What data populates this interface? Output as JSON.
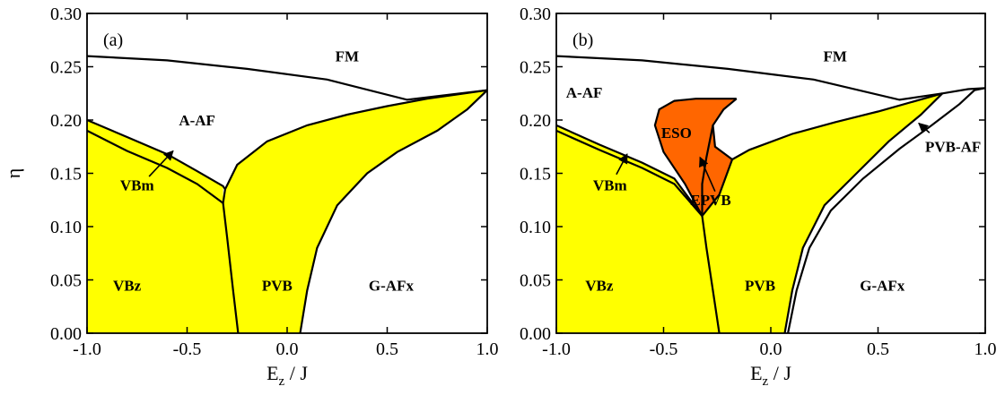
{
  "chart_data": [
    {
      "type": "area",
      "panel_label": "(a)",
      "xlabel_main": "E",
      "xlabel_sub": "z",
      "xlabel_tail": " / J",
      "ylabel": "η",
      "xlim": [
        -1.0,
        1.0
      ],
      "ylim": [
        0.0,
        0.3
      ],
      "x_ticks": [
        "-1.0",
        "-0.5",
        "0.0",
        "0.5",
        "1.0"
      ],
      "y_ticks": [
        "0.00",
        "0.05",
        "0.10",
        "0.15",
        "0.20",
        "0.25",
        "0.30"
      ],
      "regions": [
        {
          "name": "FM",
          "x": 0.3,
          "y": 0.255
        },
        {
          "name": "A-AF",
          "x": -0.45,
          "y": 0.195
        },
        {
          "name": "VBz",
          "x": -0.8,
          "y": 0.04
        },
        {
          "name": "PVB",
          "x": -0.05,
          "y": 0.04
        },
        {
          "name": "G-AFx",
          "x": 0.52,
          "y": 0.04
        }
      ],
      "annotations": [
        {
          "text": "VBm",
          "text_x": -0.75,
          "text_y": 0.134,
          "arrow_from": [
            -0.69,
            0.147
          ],
          "arrow_to": [
            -0.57,
            0.171
          ]
        }
      ],
      "fills": [
        {
          "name": "VBz",
          "color": "#ffff00",
          "points": [
            [
              -1.0,
              0.0
            ],
            [
              -1.0,
              0.19
            ],
            [
              -0.8,
              0.171
            ],
            [
              -0.6,
              0.155
            ],
            [
              -0.45,
              0.14
            ],
            [
              -0.32,
              0.122
            ],
            [
              -0.3,
              0.09
            ],
            [
              -0.27,
              0.04
            ],
            [
              -0.245,
              0.0
            ]
          ]
        },
        {
          "name": "PVB",
          "color": "#ffff00",
          "points": [
            [
              -0.245,
              0.0
            ],
            [
              -0.27,
              0.04
            ],
            [
              -0.3,
              0.09
            ],
            [
              -0.32,
              0.122
            ],
            [
              -0.31,
              0.135
            ],
            [
              -0.25,
              0.158
            ],
            [
              -0.1,
              0.18
            ],
            [
              0.1,
              0.195
            ],
            [
              0.3,
              0.205
            ],
            [
              0.5,
              0.213
            ],
            [
              0.7,
              0.22
            ],
            [
              1.0,
              0.228
            ],
            [
              0.9,
              0.21
            ],
            [
              0.75,
              0.19
            ],
            [
              0.55,
              0.17
            ],
            [
              0.4,
              0.15
            ],
            [
              0.25,
              0.12
            ],
            [
              0.15,
              0.08
            ],
            [
              0.1,
              0.04
            ],
            [
              0.065,
              0.0
            ]
          ]
        },
        {
          "name": "VBm",
          "color": "#ffff00",
          "points": [
            [
              -1.0,
              0.2
            ],
            [
              -0.8,
              0.184
            ],
            [
              -0.6,
              0.168
            ],
            [
              -0.45,
              0.152
            ],
            [
              -0.32,
              0.138
            ],
            [
              -0.32,
              0.122
            ],
            [
              -0.45,
              0.14
            ],
            [
              -0.6,
              0.155
            ],
            [
              -0.8,
              0.171
            ],
            [
              -1.0,
              0.19
            ]
          ]
        }
      ],
      "lines": [
        {
          "name": "FM/A-AF",
          "points": [
            [
              -1.0,
              0.26
            ],
            [
              -0.6,
              0.256
            ],
            [
              -0.2,
              0.248
            ],
            [
              0.2,
              0.238
            ],
            [
              0.6,
              0.219
            ],
            [
              1.0,
              0.228
            ]
          ]
        },
        {
          "name": "A-AF/VBm",
          "points": [
            [
              -1.0,
              0.2
            ],
            [
              -0.8,
              0.184
            ],
            [
              -0.6,
              0.168
            ],
            [
              -0.45,
              0.152
            ],
            [
              -0.32,
              0.138
            ],
            [
              -0.31,
              0.135
            ]
          ]
        },
        {
          "name": "VBm/VBz",
          "points": [
            [
              -1.0,
              0.19
            ],
            [
              -0.8,
              0.171
            ],
            [
              -0.6,
              0.155
            ],
            [
              -0.45,
              0.14
            ],
            [
              -0.32,
              0.122
            ]
          ]
        },
        {
          "name": "VBm-end",
          "points": [
            [
              -0.32,
              0.122
            ],
            [
              -0.31,
              0.135
            ]
          ]
        },
        {
          "name": "VBz/PVB",
          "points": [
            [
              -0.32,
              0.122
            ],
            [
              -0.3,
              0.09
            ],
            [
              -0.27,
              0.04
            ],
            [
              -0.245,
              0.0
            ]
          ]
        },
        {
          "name": "A-AF/PVB",
          "points": [
            [
              -0.31,
              0.135
            ],
            [
              -0.25,
              0.158
            ],
            [
              -0.1,
              0.18
            ],
            [
              0.1,
              0.195
            ],
            [
              0.3,
              0.205
            ],
            [
              0.5,
              0.213
            ],
            [
              0.7,
              0.22
            ],
            [
              1.0,
              0.228
            ]
          ]
        },
        {
          "name": "PVB/G-AFx",
          "points": [
            [
              0.065,
              0.0
            ],
            [
              0.1,
              0.04
            ],
            [
              0.15,
              0.08
            ],
            [
              0.25,
              0.12
            ],
            [
              0.4,
              0.15
            ],
            [
              0.55,
              0.17
            ],
            [
              0.75,
              0.19
            ],
            [
              0.9,
              0.21
            ],
            [
              1.0,
              0.228
            ]
          ]
        }
      ]
    },
    {
      "type": "area",
      "panel_label": "(b)",
      "xlabel_main": "E",
      "xlabel_sub": "z",
      "xlabel_tail": " / J",
      "ylabel": "",
      "xlim": [
        -1.0,
        1.0
      ],
      "ylim": [
        0.0,
        0.3
      ],
      "x_ticks": [
        "-1.0",
        "-0.5",
        "0.0",
        "0.5",
        "1.0"
      ],
      "y_ticks": [
        "0.00",
        "0.05",
        "0.10",
        "0.15",
        "0.20",
        "0.25",
        "0.30"
      ],
      "regions": [
        {
          "name": "FM",
          "x": 0.3,
          "y": 0.255
        },
        {
          "name": "A-AF",
          "x": -0.87,
          "y": 0.221
        },
        {
          "name": "ESO",
          "x": -0.44,
          "y": 0.183
        },
        {
          "name": "VBz",
          "x": -0.8,
          "y": 0.04
        },
        {
          "name": "PVB",
          "x": -0.05,
          "y": 0.04
        },
        {
          "name": "G-AFx",
          "x": 0.52,
          "y": 0.04
        }
      ],
      "annotations": [
        {
          "text": "VBm",
          "text_x": -0.75,
          "text_y": 0.134,
          "arrow_from": [
            -0.72,
            0.149
          ],
          "arrow_to": [
            -0.67,
            0.168
          ]
        },
        {
          "text": "EPVB",
          "text_x": -0.28,
          "text_y": 0.12,
          "arrow_from": [
            -0.26,
            0.133
          ],
          "arrow_to": [
            -0.33,
            0.165
          ]
        },
        {
          "text": "PVB-AF",
          "text_x": 0.85,
          "text_y": 0.17,
          "arrow_from": [
            0.74,
            0.188
          ],
          "arrow_to": [
            0.69,
            0.197
          ]
        }
      ],
      "fills": [
        {
          "name": "VBz",
          "color": "#ffff00",
          "points": [
            [
              -1.0,
              0.0
            ],
            [
              -1.0,
              0.19
            ],
            [
              -0.8,
              0.172
            ],
            [
              -0.6,
              0.155
            ],
            [
              -0.45,
              0.14
            ],
            [
              -0.32,
              0.11
            ],
            [
              -0.3,
              0.08
            ],
            [
              -0.27,
              0.04
            ],
            [
              -0.24,
              0.0
            ]
          ]
        },
        {
          "name": "VBm",
          "color": "#ffff00",
          "points": [
            [
              -1.0,
              0.195
            ],
            [
              -0.8,
              0.177
            ],
            [
              -0.6,
              0.16
            ],
            [
              -0.45,
              0.145
            ],
            [
              -0.32,
              0.11
            ],
            [
              -0.45,
              0.14
            ],
            [
              -0.6,
              0.155
            ],
            [
              -0.8,
              0.172
            ],
            [
              -1.0,
              0.19
            ]
          ]
        },
        {
          "name": "PVB",
          "color": "#ffff00",
          "points": [
            [
              -0.24,
              0.0
            ],
            [
              -0.27,
              0.04
            ],
            [
              -0.3,
              0.08
            ],
            [
              -0.32,
              0.11
            ],
            [
              -0.24,
              0.13
            ],
            [
              -0.18,
              0.163
            ],
            [
              -0.1,
              0.172
            ],
            [
              0.1,
              0.187
            ],
            [
              0.3,
              0.198
            ],
            [
              0.5,
              0.208
            ],
            [
              0.8,
              0.225
            ],
            [
              0.7,
              0.205
            ],
            [
              0.55,
              0.18
            ],
            [
              0.4,
              0.15
            ],
            [
              0.25,
              0.12
            ],
            [
              0.15,
              0.08
            ],
            [
              0.1,
              0.04
            ],
            [
              0.065,
              0.0
            ]
          ]
        },
        {
          "name": "ESO",
          "color": "#ff6600",
          "points": [
            [
              -0.32,
              0.11
            ],
            [
              -0.4,
              0.14
            ],
            [
              -0.5,
              0.17
            ],
            [
              -0.54,
              0.195
            ],
            [
              -0.52,
              0.21
            ],
            [
              -0.45,
              0.218
            ],
            [
              -0.35,
              0.22
            ],
            [
              -0.2,
              0.22
            ],
            [
              -0.16,
              0.22
            ],
            [
              -0.22,
              0.21
            ],
            [
              -0.27,
              0.195
            ],
            [
              -0.26,
              0.175
            ],
            [
              -0.18,
              0.163
            ],
            [
              -0.24,
              0.13
            ]
          ]
        }
      ],
      "lines": [
        {
          "name": "FM/A-AF",
          "points": [
            [
              -1.0,
              0.26
            ],
            [
              -0.6,
              0.256
            ],
            [
              -0.2,
              0.248
            ],
            [
              0.2,
              0.238
            ],
            [
              0.6,
              0.219
            ],
            [
              0.8,
              0.225
            ],
            [
              0.92,
              0.229
            ],
            [
              1.0,
              0.23
            ]
          ]
        },
        {
          "name": "A-AF/VBm",
          "points": [
            [
              -1.0,
              0.195
            ],
            [
              -0.8,
              0.177
            ],
            [
              -0.6,
              0.16
            ],
            [
              -0.45,
              0.145
            ],
            [
              -0.32,
              0.11
            ]
          ]
        },
        {
          "name": "VBm/VBz",
          "points": [
            [
              -1.0,
              0.19
            ],
            [
              -0.8,
              0.172
            ],
            [
              -0.6,
              0.155
            ],
            [
              -0.45,
              0.14
            ],
            [
              -0.32,
              0.11
            ]
          ]
        },
        {
          "name": "VBz/PVB",
          "points": [
            [
              -0.32,
              0.11
            ],
            [
              -0.3,
              0.08
            ],
            [
              -0.27,
              0.04
            ],
            [
              -0.24,
              0.0
            ]
          ]
        },
        {
          "name": "ESO-outer",
          "points": [
            [
              -0.32,
              0.11
            ],
            [
              -0.4,
              0.14
            ],
            [
              -0.5,
              0.17
            ],
            [
              -0.54,
              0.195
            ],
            [
              -0.52,
              0.21
            ],
            [
              -0.45,
              0.218
            ],
            [
              -0.35,
              0.22
            ],
            [
              -0.2,
              0.22
            ],
            [
              -0.16,
              0.22
            ]
          ]
        },
        {
          "name": "ESO-inner",
          "points": [
            [
              -0.16,
              0.22
            ],
            [
              -0.22,
              0.21
            ],
            [
              -0.27,
              0.195
            ],
            [
              -0.26,
              0.175
            ],
            [
              -0.18,
              0.163
            ]
          ]
        },
        {
          "name": "EPVB/ESO",
          "points": [
            [
              -0.32,
              0.11
            ],
            [
              -0.32,
              0.14
            ],
            [
              -0.3,
              0.165
            ],
            [
              -0.27,
              0.195
            ]
          ]
        },
        {
          "name": "EPVB/PVB",
          "points": [
            [
              -0.32,
              0.11
            ],
            [
              -0.24,
              0.13
            ],
            [
              -0.18,
              0.163
            ]
          ]
        },
        {
          "name": "ESO-PVB-edge",
          "points": [
            [
              -0.18,
              0.163
            ],
            [
              -0.1,
              0.172
            ],
            [
              0.1,
              0.187
            ],
            [
              0.3,
              0.198
            ],
            [
              0.5,
              0.208
            ],
            [
              0.8,
              0.225
            ]
          ]
        },
        {
          "name": "PVB/PVB-AF",
          "points": [
            [
              0.065,
              0.0
            ],
            [
              0.1,
              0.04
            ],
            [
              0.15,
              0.08
            ],
            [
              0.25,
              0.12
            ],
            [
              0.4,
              0.15
            ],
            [
              0.55,
              0.18
            ],
            [
              0.7,
              0.205
            ],
            [
              0.8,
              0.225
            ]
          ]
        },
        {
          "name": "PVB-AF/G-AFx",
          "points": [
            [
              0.08,
              0.0
            ],
            [
              0.12,
              0.04
            ],
            [
              0.18,
              0.08
            ],
            [
              0.28,
              0.115
            ],
            [
              0.43,
              0.145
            ],
            [
              0.6,
              0.173
            ],
            [
              0.75,
              0.195
            ],
            [
              0.88,
              0.215
            ],
            [
              0.95,
              0.228
            ],
            [
              1.0,
              0.23
            ]
          ]
        }
      ]
    }
  ]
}
